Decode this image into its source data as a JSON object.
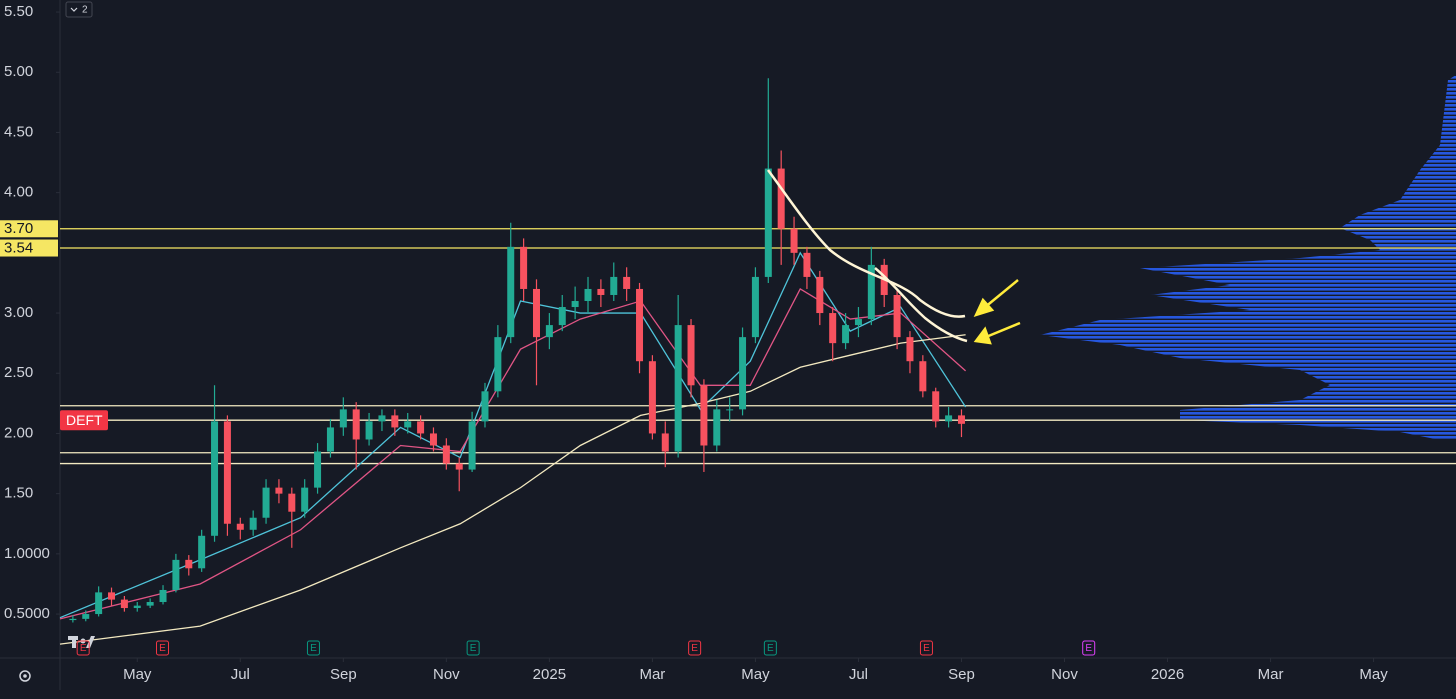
{
  "chart_data": {
    "type": "candlestick",
    "indicator_badge": "2",
    "ticker_label": "DEFT",
    "ylim": [
      0.135,
      5.6
    ],
    "yticks": [
      {
        "value": 0.5,
        "label": "0.5000"
      },
      {
        "value": 1,
        "label": "1.0000"
      },
      {
        "value": 1.5,
        "label": "1.50"
      },
      {
        "value": 2,
        "label": "2.00"
      },
      {
        "value": 2.5,
        "label": "2.50"
      },
      {
        "value": 3,
        "label": "3.00"
      },
      {
        "value": 4,
        "label": "4.00"
      },
      {
        "value": 4.5,
        "label": "4.50"
      },
      {
        "value": 5,
        "label": "5.00"
      },
      {
        "value": 5.5,
        "label": "5.50"
      }
    ],
    "xlim": [
      -1.5,
      25.6
    ],
    "xticks": [
      {
        "value": 0,
        "label": "May"
      },
      {
        "value": 2,
        "label": "Jul"
      },
      {
        "value": 4,
        "label": "Sep"
      },
      {
        "value": 6,
        "label": "Nov"
      },
      {
        "value": 8,
        "label": "2025"
      },
      {
        "value": 10,
        "label": "Mar"
      },
      {
        "value": 12,
        "label": "May"
      },
      {
        "value": 14,
        "label": "Jul"
      },
      {
        "value": 16,
        "label": "Sep"
      },
      {
        "value": 18,
        "label": "Nov"
      },
      {
        "value": 20,
        "label": "2026"
      },
      {
        "value": 22,
        "label": "Mar"
      },
      {
        "value": 24,
        "label": "May"
      }
    ],
    "up_color": "#22ab94",
    "down_color": "#f7525f",
    "x": [
      -1.25,
      -1,
      -0.75,
      -0.5,
      -0.25,
      0,
      0.25,
      0.5,
      0.75,
      1,
      1.25,
      1.5,
      1.75,
      2,
      2.25,
      2.5,
      2.75,
      3,
      3.25,
      3.5,
      3.75,
      4,
      4.25,
      4.5,
      4.75,
      5,
      5.25,
      5.5,
      5.75,
      6,
      6.25,
      6.5,
      6.75,
      7,
      7.25,
      7.5,
      7.75,
      8,
      8.25,
      8.5,
      8.75,
      9,
      9.25,
      9.5,
      9.75,
      10,
      10.25,
      10.5,
      10.75,
      11,
      11.25,
      11.5,
      11.75,
      12,
      12.25,
      12.5,
      12.75,
      13,
      13.25,
      13.5,
      13.75,
      14,
      14.25,
      14.5,
      14.75,
      15,
      15.25,
      15.5,
      15.75,
      16
    ],
    "open": [
      0.45,
      0.46,
      0.5,
      0.68,
      0.62,
      0.55,
      0.57,
      0.6,
      0.7,
      0.95,
      0.88,
      1.15,
      2.1,
      1.25,
      1.2,
      1.3,
      1.55,
      1.5,
      1.35,
      1.55,
      1.85,
      2.05,
      2.2,
      1.95,
      2.1,
      2.15,
      2.05,
      2.1,
      2.0,
      1.9,
      1.75,
      1.7,
      2.1,
      2.35,
      2.8,
      3.55,
      3.2,
      2.8,
      2.9,
      3.05,
      3.1,
      3.2,
      3.15,
      3.3,
      3.2,
      2.6,
      2.0,
      1.85,
      2.9,
      2.4,
      1.9,
      2.2,
      2.2,
      2.8,
      3.3,
      4.2,
      3.7,
      3.5,
      3.3,
      3.0,
      2.75,
      2.9,
      2.95,
      3.4,
      3.15,
      2.8,
      2.6,
      2.35,
      2.1,
      2.15
    ],
    "high": [
      0.49,
      0.53,
      0.73,
      0.72,
      0.65,
      0.6,
      0.63,
      0.74,
      1.0,
      0.99,
      1.2,
      2.4,
      2.15,
      1.3,
      1.36,
      1.62,
      1.62,
      1.55,
      1.62,
      1.92,
      2.12,
      2.3,
      2.26,
      2.17,
      2.2,
      2.2,
      2.17,
      2.15,
      2.05,
      1.96,
      1.8,
      2.18,
      2.42,
      2.9,
      3.75,
      3.62,
      3.28,
      3.0,
      3.15,
      3.22,
      3.3,
      3.28,
      3.42,
      3.38,
      3.25,
      2.65,
      2.1,
      3.15,
      2.95,
      2.45,
      2.28,
      2.3,
      2.88,
      3.38,
      4.95,
      4.35,
      3.8,
      3.55,
      3.35,
      3.05,
      3.0,
      3.05,
      3.55,
      3.45,
      3.2,
      2.85,
      2.65,
      2.38,
      2.22,
      2.2
    ],
    "low": [
      0.43,
      0.44,
      0.48,
      0.57,
      0.52,
      0.52,
      0.55,
      0.58,
      0.68,
      0.82,
      0.85,
      1.1,
      1.15,
      1.12,
      1.15,
      1.25,
      1.42,
      1.05,
      1.3,
      1.5,
      1.8,
      1.98,
      1.7,
      1.9,
      2.02,
      1.98,
      2.0,
      1.95,
      1.85,
      1.7,
      1.52,
      1.68,
      2.05,
      2.3,
      2.75,
      3.1,
      2.4,
      2.7,
      2.85,
      2.95,
      3.0,
      3.05,
      3.1,
      3.1,
      2.5,
      1.95,
      1.72,
      1.8,
      2.3,
      1.68,
      1.85,
      2.1,
      2.15,
      2.75,
      3.25,
      3.4,
      3.4,
      3.2,
      2.9,
      2.6,
      2.7,
      2.8,
      2.9,
      3.05,
      2.7,
      2.5,
      2.3,
      2.05,
      2.05,
      1.97
    ],
    "close": [
      0.46,
      0.5,
      0.68,
      0.62,
      0.55,
      0.57,
      0.6,
      0.7,
      0.95,
      0.88,
      1.15,
      2.1,
      1.25,
      1.2,
      1.3,
      1.55,
      1.5,
      1.35,
      1.55,
      1.85,
      2.05,
      2.2,
      1.95,
      2.1,
      2.15,
      2.05,
      2.1,
      2.0,
      1.9,
      1.75,
      1.7,
      2.1,
      2.35,
      2.8,
      3.55,
      3.2,
      2.8,
      2.9,
      3.05,
      3.1,
      3.2,
      3.15,
      3.3,
      3.2,
      2.6,
      2.0,
      1.85,
      2.9,
      2.4,
      1.9,
      2.2,
      2.2,
      2.8,
      3.3,
      4.2,
      3.7,
      3.5,
      3.3,
      3.0,
      2.75,
      2.9,
      2.95,
      3.4,
      3.15,
      2.8,
      2.6,
      2.35,
      2.1,
      2.15,
      2.08
    ],
    "ma_x": [
      -1.5,
      1.22,
      3.17,
      5.11,
      6.27,
      7.44,
      8.6,
      9.77,
      10.93,
      11.9,
      12.87,
      13.84,
      14.82,
      16.08
    ],
    "moving_averages": [
      {
        "color": "#4fc3d9",
        "values": [
          0.47,
          0.95,
          1.3,
          2.05,
          1.8,
          3.1,
          3.0,
          3.0,
          2.2,
          2.6,
          3.5,
          2.85,
          3.05,
          2.22
        ]
      },
      {
        "color": "#e05585",
        "values": [
          0.46,
          0.75,
          1.2,
          1.9,
          1.85,
          2.7,
          2.95,
          3.1,
          2.4,
          2.4,
          3.2,
          2.95,
          3.0,
          2.52
        ]
      },
      {
        "color": "#f3e9c0",
        "values": [
          0.25,
          0.4,
          0.7,
          1.05,
          1.25,
          1.55,
          1.9,
          2.15,
          2.25,
          2.35,
          2.55,
          2.65,
          2.75,
          2.82
        ]
      }
    ],
    "levels": [
      {
        "value": 3.7,
        "label": "3.70",
        "color": "#f5e663"
      },
      {
        "value": 3.54,
        "label": "3.54",
        "color": "#f5e663"
      },
      {
        "value": 2.23,
        "color": "#f3eac2"
      },
      {
        "value": 2.11,
        "color": "#f3eac2"
      },
      {
        "value": 1.84,
        "color": "#f3eac2"
      },
      {
        "value": 1.75,
        "color": "#f3eac2"
      }
    ],
    "events": [
      {
        "x": -1.05,
        "label": "E",
        "color": "#f23645"
      },
      {
        "x": 0.49,
        "label": "E",
        "color": "#f23645"
      },
      {
        "x": 3.42,
        "label": "E",
        "color": "#089981"
      },
      {
        "x": 6.52,
        "label": "E",
        "color": "#089981"
      },
      {
        "x": 10.82,
        "label": "E",
        "color": "#f23645"
      },
      {
        "x": 12.29,
        "label": "E",
        "color": "#089981"
      },
      {
        "x": 15.32,
        "label": "E",
        "color": "#f23645"
      },
      {
        "x": 18.47,
        "label": "E",
        "color": "#e040fb"
      }
    ]
  }
}
